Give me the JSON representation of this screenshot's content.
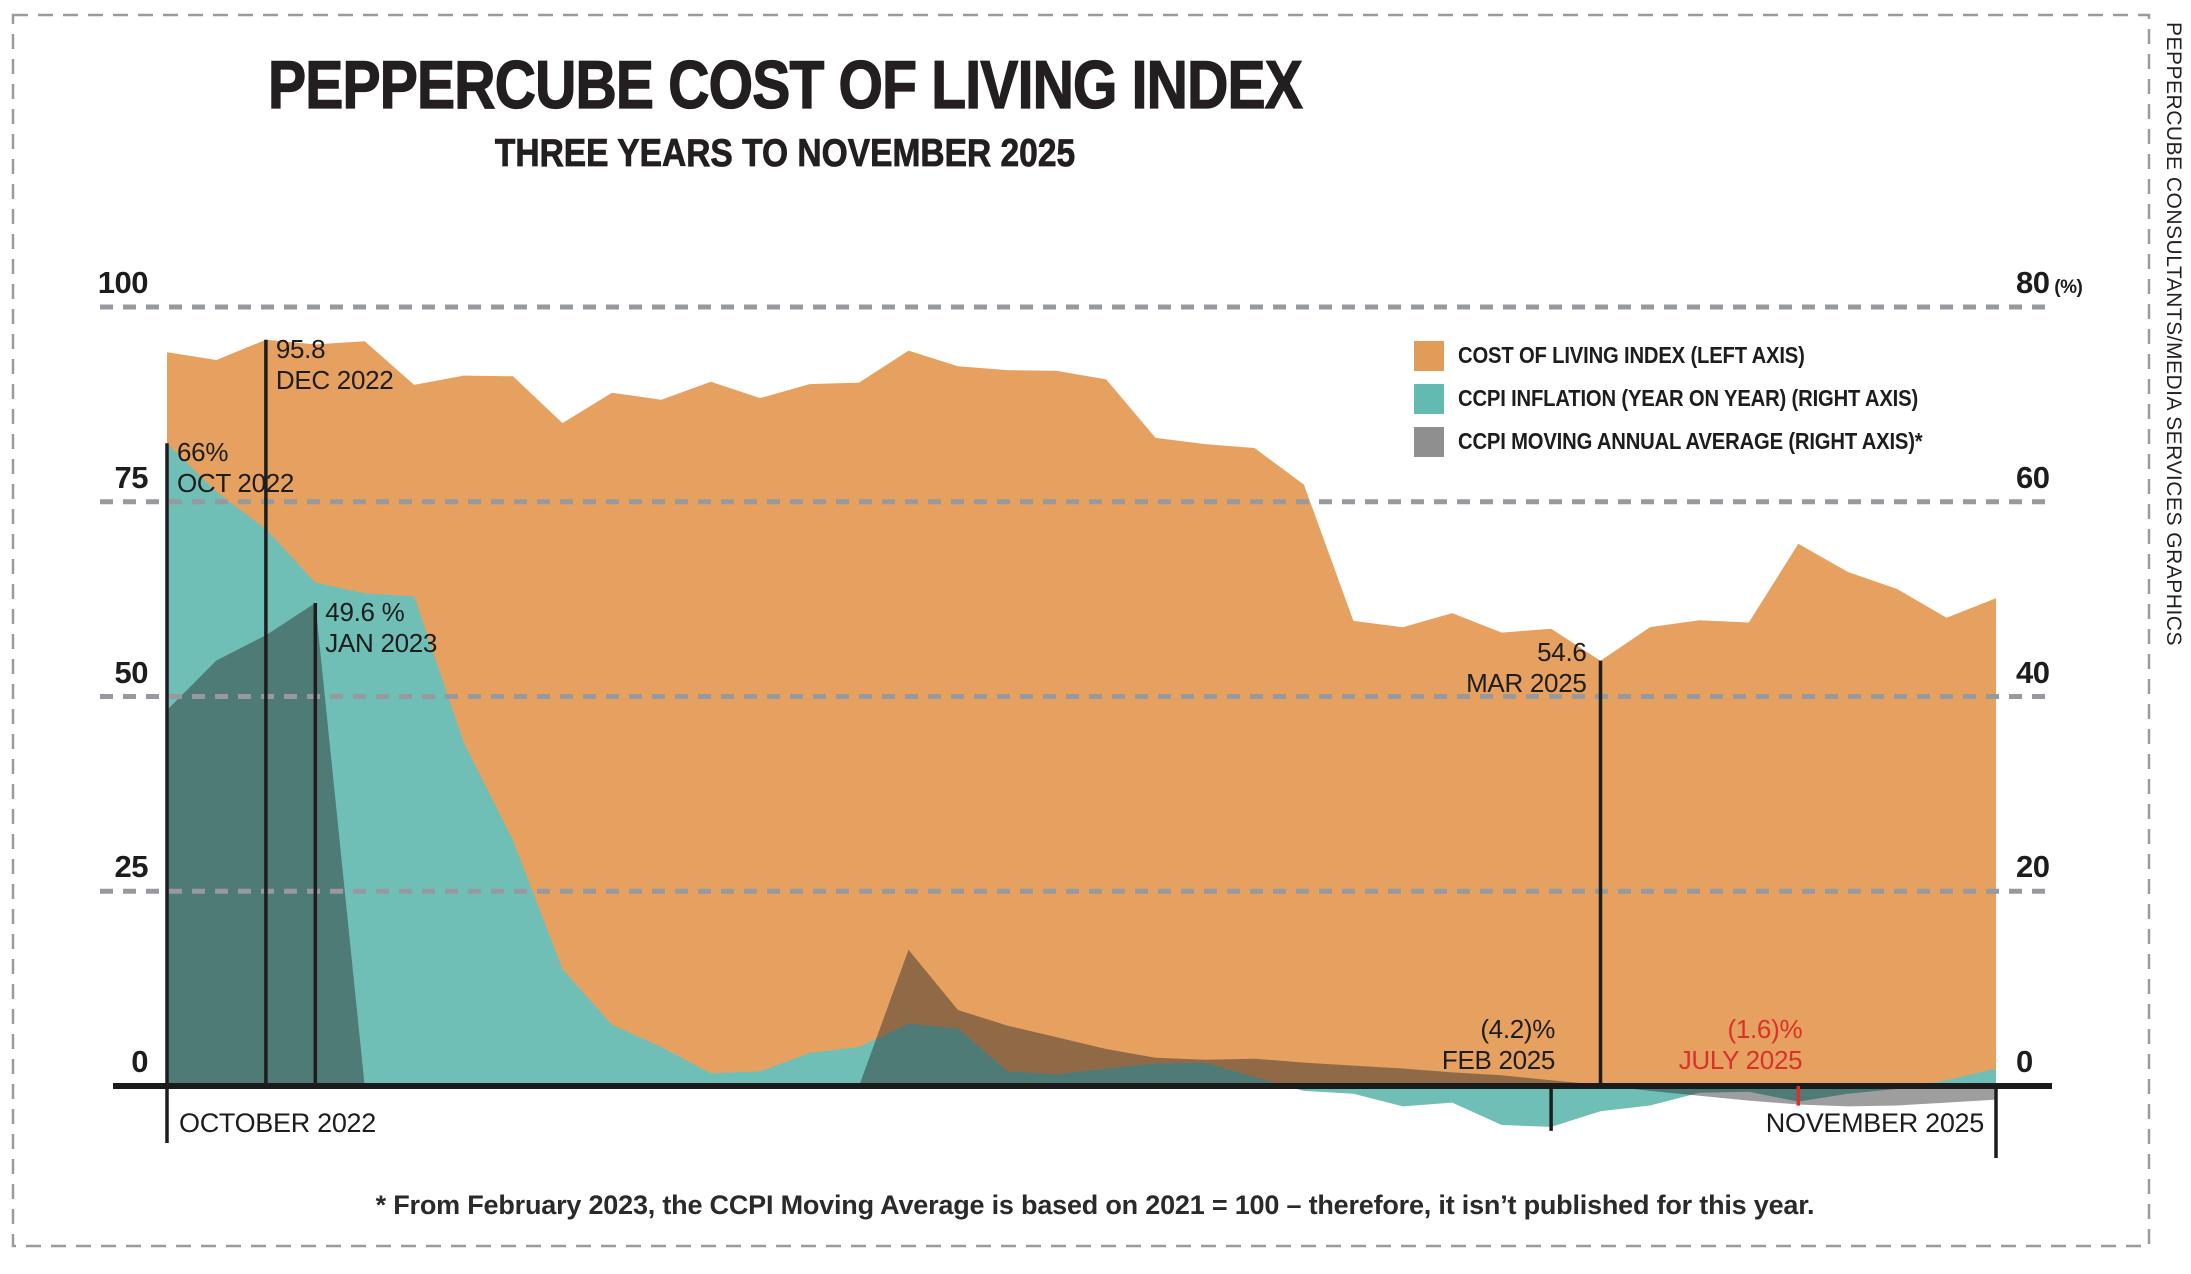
{
  "title": {
    "main": "PEPPERCUBE COST OF LIVING INDEX",
    "subtitle": "THREE YEARS TO NOVEMBER 2025"
  },
  "credit": "PEPPERCUBE CONSULTANTS/MEDIA SERVICES GRAPHICS",
  "footnote": "* From February 2023, the CCPI Moving Average is based on 2021 = 100 – therefore, it isn’t published for this year.",
  "legend": [
    {
      "label": "COST OF LIVING INDEX (LEFT AXIS)",
      "color": "#e29c5a"
    },
    {
      "label": "CCPI INFLATION (YEAR ON YEAR) (RIGHT AXIS)",
      "color": "#63bab0"
    },
    {
      "label": "CCPI MOVING ANNUAL AVERAGE (RIGHT AXIS)*",
      "color": "#8f8f8f"
    }
  ],
  "axes": {
    "left_ticks": [
      "100",
      "75",
      "50",
      "25",
      "0"
    ],
    "right_ticks": [
      "80",
      "60",
      "40",
      "20",
      "0"
    ],
    "right_unit": "(%)",
    "x_start_label": "OCTOBER 2022",
    "x_end_label": "NOVEMBER 2025"
  },
  "annotations": [
    {
      "value": "66%",
      "date": "OCT 2022",
      "month_index": 0,
      "series": "yoy",
      "side": "right",
      "color": "#1d1d1d",
      "line_extends_below_axis": true
    },
    {
      "value": "95.8",
      "date": "DEC 2022",
      "month_index": 2,
      "series": "coli",
      "side": "right",
      "color": "#1d1d1d"
    },
    {
      "value": "49.6 %",
      "date": "JAN 2023",
      "month_index": 3,
      "series": "avg",
      "side": "right",
      "color": "#1d1d1d"
    },
    {
      "value": "54.6",
      "date": "MAR 2025",
      "month_index": 29,
      "series": "coli",
      "side": "left",
      "color": "#1d1d1d"
    },
    {
      "value": "(4.2)%",
      "date": "FEB 2025",
      "month_index": 28,
      "series": "yoy",
      "side": "left",
      "color": "#1d1d1d"
    },
    {
      "value": "(1.6)%",
      "date": "JULY 2025",
      "month_index": 33,
      "series": "yoy",
      "side": "left",
      "color": "#d9312b"
    }
  ],
  "chart_data": {
    "type": "area",
    "title": "PEPPERCUBE COST OF LIVING INDEX",
    "subtitle": "THREE YEARS TO NOVEMBER 2025",
    "grid": "horizontal-dashed",
    "legend_position": "top-right",
    "left_axis": {
      "range": [
        0,
        100
      ],
      "ticks": [
        100,
        75,
        50,
        25,
        0
      ]
    },
    "right_axis": {
      "range": [
        0,
        80
      ],
      "ticks": [
        80,
        60,
        40,
        20,
        0
      ],
      "unit": "(%)"
    },
    "x": [
      "OCT 2022",
      "NOV 2022",
      "DEC 2022",
      "JAN 2023",
      "FEB 2023",
      "MAR 2023",
      "APR 2023",
      "MAY 2023",
      "JUN 2023",
      "JUL 2023",
      "AUG 2023",
      "SEP 2023",
      "OCT 2023",
      "NOV 2023",
      "DEC 2023",
      "JAN 2024",
      "FEB 2024",
      "MAR 2024",
      "APR 2024",
      "MAY 2024",
      "JUN 2024",
      "JUL 2024",
      "AUG 2024",
      "SEP 2024",
      "OCT 2024",
      "NOV 2024",
      "DEC 2024",
      "JAN 2025",
      "FEB 2025",
      "MAR 2025",
      "APR 2025",
      "MAY 2025",
      "JUN 2025",
      "JUL 2025",
      "AUG 2025",
      "SEP 2025",
      "OCT 2025",
      "NOV 2025"
    ],
    "series": [
      {
        "id": "coli",
        "name": "COST OF LIVING INDEX",
        "axis": "left",
        "color": "#e6a160",
        "values": [
          94.2,
          93.2,
          95.8,
          95.2,
          95.6,
          90.0,
          91.2,
          91.1,
          85.1,
          89.0,
          88.1,
          90.4,
          88.3,
          90.1,
          90.3,
          94.4,
          92.4,
          91.9,
          91.8,
          90.7,
          83.2,
          82.4,
          81.9,
          77.2,
          59.7,
          58.9,
          60.7,
          58.2,
          58.7,
          54.6,
          58.9,
          59.8,
          59.5,
          69.6,
          66.0,
          63.8,
          60.1,
          62.6
        ]
      },
      {
        "id": "yoy",
        "name": "CCPI INFLATION (YEAR ON YEAR)",
        "axis": "right",
        "color": "#6fbfb6",
        "values": [
          66.0,
          61.0,
          57.2,
          51.7,
          50.6,
          50.3,
          35.3,
          25.2,
          12.0,
          6.3,
          4.0,
          1.3,
          1.5,
          3.4,
          4.0,
          6.4,
          5.9,
          1.5,
          1.2,
          1.8,
          2.3,
          2.4,
          0.9,
          -0.5,
          -0.8,
          -2.1,
          -1.7,
          -4.0,
          -4.2,
          -2.6,
          -2.0,
          -0.7,
          -0.6,
          -1.6,
          -0.8,
          -0.3,
          0.6,
          1.8
        ]
      },
      {
        "id": "avg",
        "name": "CCPI MOVING ANNUAL AVERAGE",
        "axis": "right",
        "color": "#8f8f8f",
        "render_color": "rgba(40,40,40,0.45)",
        "values": [
          38.6,
          43.7,
          46.3,
          49.6,
          0,
          null,
          null,
          null,
          null,
          null,
          null,
          null,
          null,
          null,
          0,
          14.0,
          7.8,
          6.2,
          5.0,
          3.8,
          2.9,
          2.7,
          2.8,
          2.4,
          2.1,
          1.8,
          1.4,
          1.1,
          0.6,
          0.1,
          -0.5,
          -1.0,
          -1.5,
          -1.9,
          -2.1,
          -2.0,
          -1.7,
          -1.4
        ]
      }
    ]
  }
}
